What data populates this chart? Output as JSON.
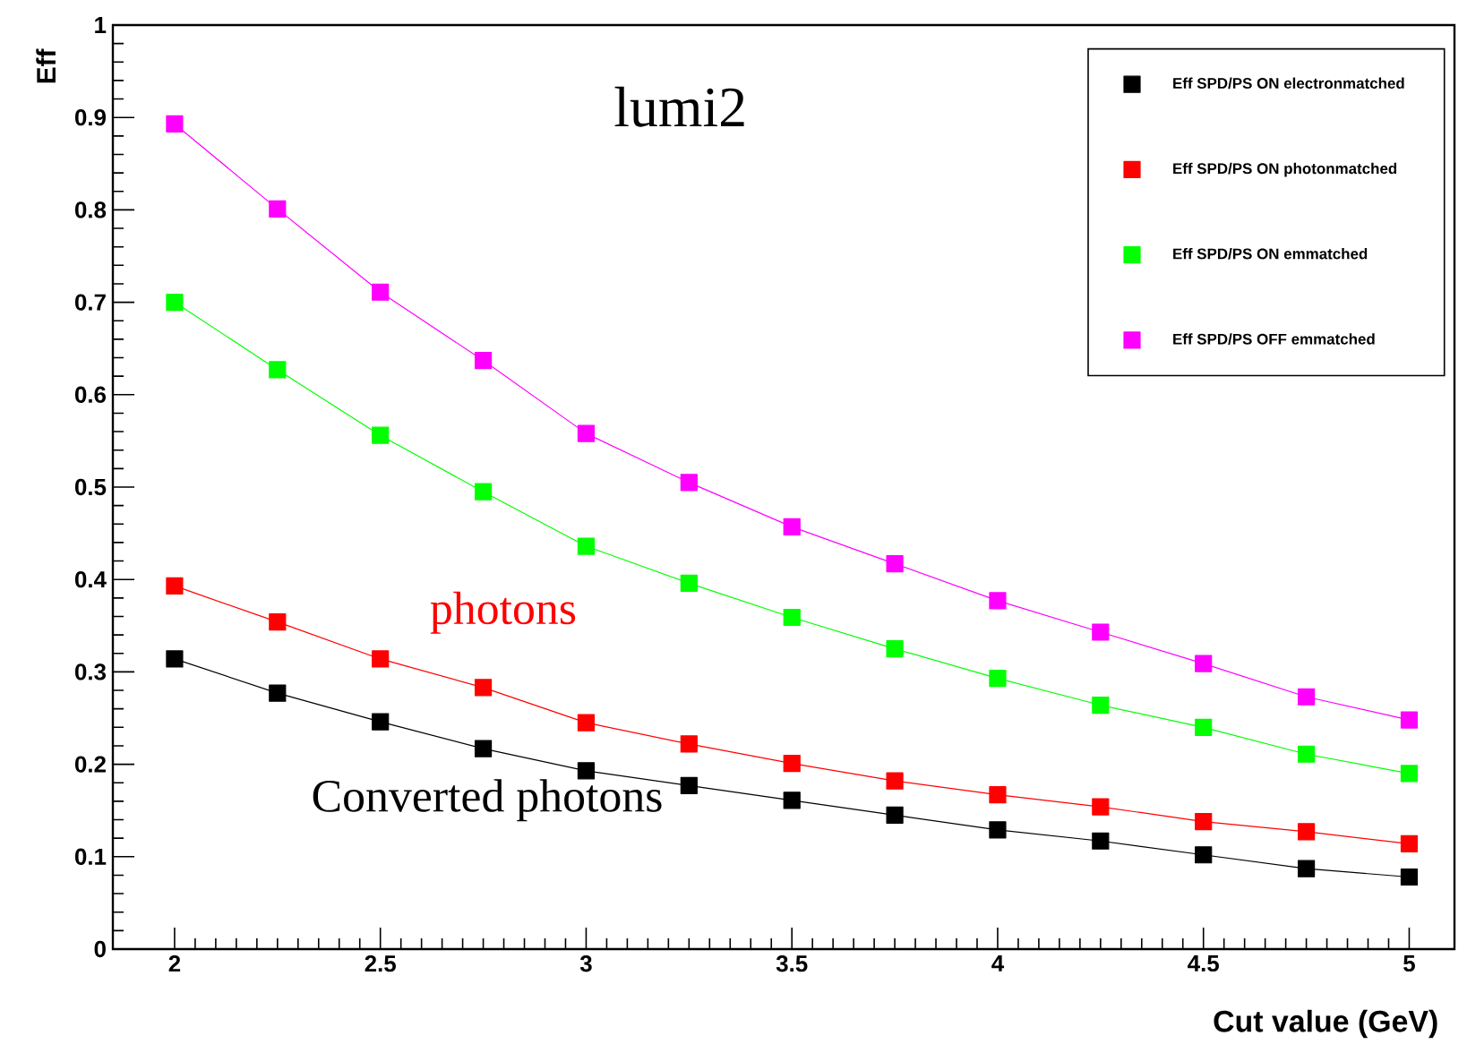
{
  "chart_data": {
    "type": "line",
    "title": "lumi2",
    "xlabel": "Cut value (GeV)",
    "ylabel": "Eff",
    "x": [
      2,
      2.25,
      2.5,
      2.75,
      3,
      3.25,
      3.5,
      3.75,
      4,
      4.25,
      4.5,
      4.75,
      5
    ],
    "series": [
      {
        "name": "Eff SPD/PS ON electronmatched",
        "color": "#000000",
        "values": [
          0.314,
          0.277,
          0.246,
          0.217,
          0.193,
          0.177,
          0.161,
          0.145,
          0.129,
          0.117,
          0.102,
          0.087,
          0.078
        ]
      },
      {
        "name": "Eff SPD/PS ON photonmatched",
        "color": "#ff0000",
        "values": [
          0.393,
          0.354,
          0.314,
          0.283,
          0.245,
          0.222,
          0.201,
          0.182,
          0.167,
          0.154,
          0.138,
          0.127,
          0.114
        ]
      },
      {
        "name": "Eff SPD/PS ON emmatched",
        "color": "#00ff00",
        "values": [
          0.7,
          0.627,
          0.556,
          0.495,
          0.436,
          0.396,
          0.359,
          0.325,
          0.293,
          0.264,
          0.24,
          0.211,
          0.19
        ]
      },
      {
        "name": "Eff SPD/PS OFF emmatched",
        "color": "#ff00ff",
        "values": [
          0.893,
          0.801,
          0.711,
          0.637,
          0.558,
          0.505,
          0.457,
          0.417,
          0.377,
          0.343,
          0.309,
          0.273,
          0.248
        ]
      }
    ],
    "annotations": [
      "photons",
      "Converted photons"
    ],
    "xlim": [
      1.85,
      5.11
    ],
    "ylim": [
      0,
      1
    ],
    "xticks": [
      2,
      2.5,
      3,
      3.5,
      4,
      4.5,
      5
    ],
    "yticks": [
      0,
      0.1,
      0.2,
      0.3,
      0.4,
      0.5,
      0.6,
      0.7,
      0.8,
      0.9,
      1
    ],
    "legend": "top right",
    "marker": "square",
    "line_style": "solid",
    "grid": false
  }
}
